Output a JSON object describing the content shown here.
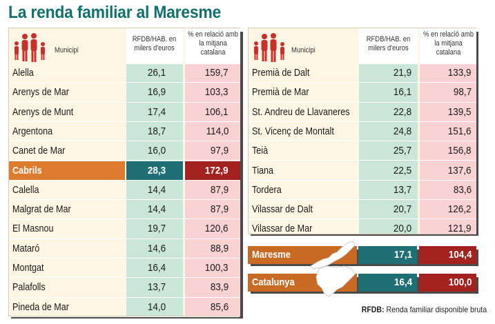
{
  "title": "La renda familiar al Maresme",
  "headers": {
    "municipi": "Municipi",
    "rfdb": [
      "RFDB/HAB. en",
      "milers d'euros"
    ],
    "percent": [
      "% en relació amb",
      "la mitjana",
      "catalana"
    ]
  },
  "left_rows": [
    {
      "name": "Alella",
      "rfdb": "26,1",
      "pct": "159,7"
    },
    {
      "name": "Arenys de Mar",
      "rfdb": "16,9",
      "pct": "103,3"
    },
    {
      "name": "Arenys de Munt",
      "rfdb": "17,4",
      "pct": "106,1"
    },
    {
      "name": "Argentona",
      "rfdb": "18,7",
      "pct": "114,0"
    },
    {
      "name": "Canet de Mar",
      "rfdb": "16,0",
      "pct": "97,9"
    },
    {
      "name": "Cabrils",
      "rfdb": "28,3",
      "pct": "172,9",
      "highlight": true
    },
    {
      "name": "Calella",
      "rfdb": "14,4",
      "pct": "87,9"
    },
    {
      "name": "Malgrat de Mar",
      "rfdb": "14,4",
      "pct": "87,9"
    },
    {
      "name": "El Masnou",
      "rfdb": "19,7",
      "pct": "120,6"
    },
    {
      "name": "Mataró",
      "rfdb": "14,6",
      "pct": "88,9"
    },
    {
      "name": "Montgat",
      "rfdb": "16,4",
      "pct": "100,3"
    },
    {
      "name": "Palafolls",
      "rfdb": "13,7",
      "pct": "83,9"
    },
    {
      "name": "Pineda de Mar",
      "rfdb": "14,0",
      "pct": "85,6"
    }
  ],
  "right_rows": [
    {
      "name": "Premià de Dalt",
      "rfdb": "21,9",
      "pct": "133,9"
    },
    {
      "name": "Premià de Mar",
      "rfdb": "16,1",
      "pct": "98,7"
    },
    {
      "name": "St. Andreu de Llavaneres",
      "rfdb": "22,8",
      "pct": "139,5"
    },
    {
      "name": "St. Vicenç de Montalt",
      "rfdb": "24,8",
      "pct": "151,6"
    },
    {
      "name": "Teià",
      "rfdb": "25,7",
      "pct": "156,8"
    },
    {
      "name": "Tiana",
      "rfdb": "22,5",
      "pct": "137,6"
    },
    {
      "name": "Tordera",
      "rfdb": "13,7",
      "pct": "83,6"
    },
    {
      "name": "Vilassar de Dalt",
      "rfdb": "20,7",
      "pct": "126,2"
    },
    {
      "name": "Vilassar de Mar",
      "rfdb": "20,0",
      "pct": "121,9"
    }
  ],
  "summary": [
    {
      "name": "Maresme",
      "rfdb": "17,1",
      "pct": "104,4",
      "icon": "maresme-map-icon"
    },
    {
      "name": "Catalunya",
      "rfdb": "16,4",
      "pct": "100,0",
      "icon": "catalunya-map-icon"
    }
  ],
  "footnote": {
    "abbr": "RFDB:",
    "text": " Renda familiar disponible bruta"
  },
  "colors": {
    "title": "#12706f",
    "panel": "#fdf6e4",
    "green_col": "#c9e6d9",
    "pink_col": "#f9d2d4",
    "orange": "#df7b2e",
    "teal": "#1f6f74",
    "red": "#a3221f"
  }
}
